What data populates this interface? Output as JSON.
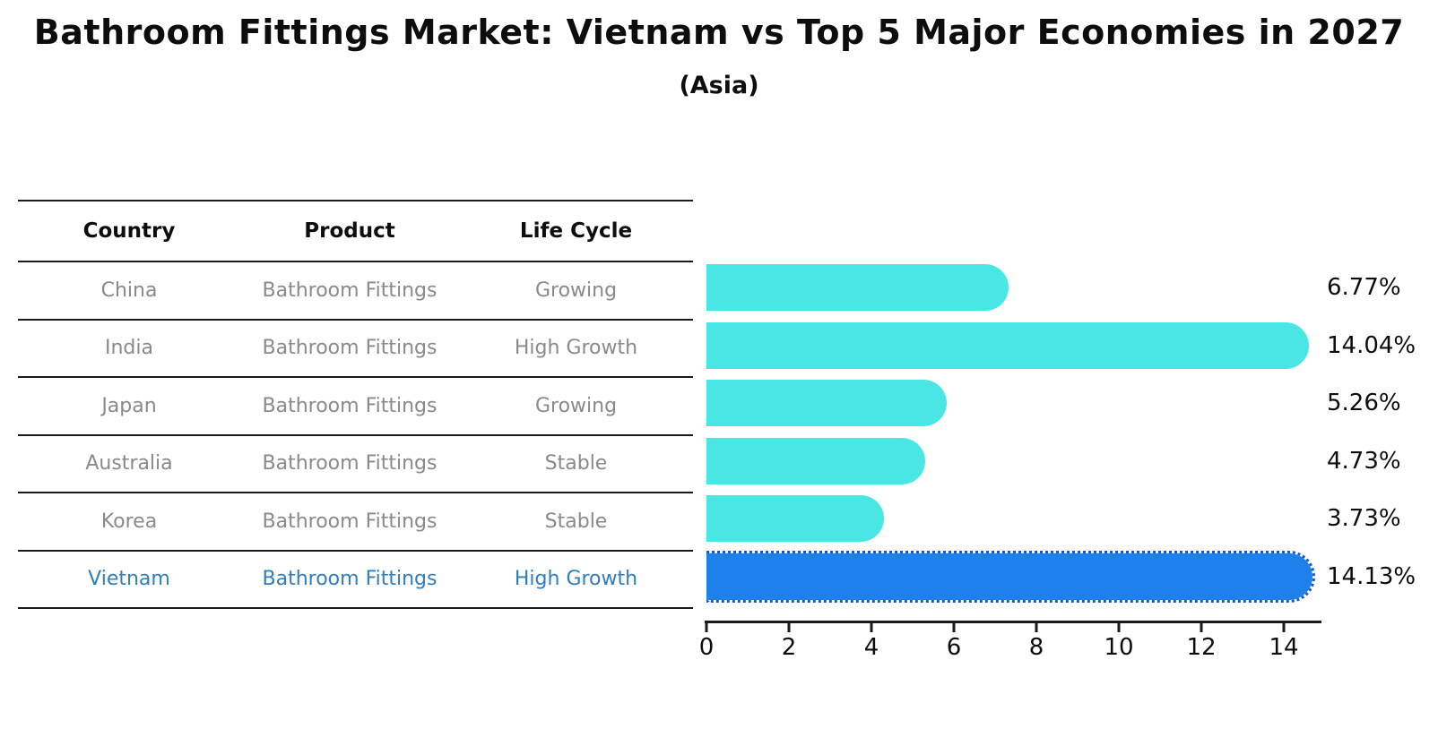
{
  "title": "Bathroom Fittings Market: Vietnam vs Top 5 Major Economies in 2027",
  "subtitle": "(Asia)",
  "chart_data": {
    "type": "bar",
    "orientation": "horizontal",
    "title": "Bathroom Fittings Market: Vietnam vs Top 5 Major Economies in 2027",
    "subtitle": "(Asia)",
    "columns": [
      "Country",
      "Product",
      "Life Cycle"
    ],
    "rows": [
      {
        "country": "China",
        "product": "Bathroom Fittings",
        "life_cycle": "Growing",
        "value": 6.77,
        "label": "6.77%",
        "highlight": false
      },
      {
        "country": "India",
        "product": "Bathroom Fittings",
        "life_cycle": "High Growth",
        "value": 14.04,
        "label": "14.04%",
        "highlight": false
      },
      {
        "country": "Japan",
        "product": "Bathroom Fittings",
        "life_cycle": "Growing",
        "value": 5.26,
        "label": "5.26%",
        "highlight": false
      },
      {
        "country": "Australia",
        "product": "Bathroom Fittings",
        "life_cycle": "Stable",
        "value": 4.73,
        "label": "4.73%",
        "highlight": false
      },
      {
        "country": "Korea",
        "product": "Bathroom Fittings",
        "life_cycle": "Stable",
        "value": 3.73,
        "label": "3.73%",
        "highlight": false
      },
      {
        "country": "Vietnam",
        "product": "Bathroom Fittings",
        "life_cycle": "High Growth",
        "value": 14.13,
        "label": "14.13%",
        "highlight": true
      }
    ],
    "xticks": [
      0,
      2,
      4,
      6,
      8,
      10,
      12,
      14
    ],
    "xlim": [
      0,
      14.87
    ],
    "grid": false,
    "legend": false,
    "colors": {
      "bar_default": "#4ae6e4",
      "bar_highlight": "#1e80eb",
      "highlight_border": "#1b55d0",
      "highlight_text": "#2f7ec0",
      "table_text": "#8a8a8a",
      "line": "#1a1a1a"
    }
  }
}
